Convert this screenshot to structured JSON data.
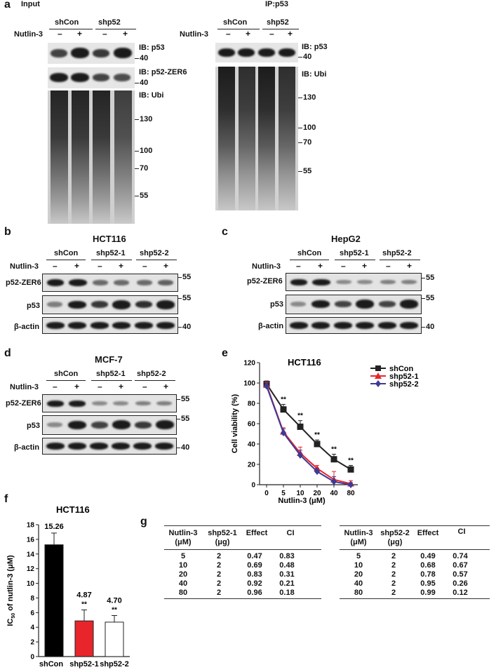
{
  "panel_a": {
    "letter": "a",
    "input_title": "Input",
    "ip_title": "IP:p53",
    "groups": [
      "shCon",
      "shp52"
    ],
    "treatment": "Nutlin-3",
    "signs": [
      "–",
      "+",
      "–",
      "+"
    ],
    "ib_p53": "IB: p53",
    "ib_zer6": "IB: p52-ZER6",
    "ib_ubi": "IB: Ubi",
    "mw_40": "40",
    "mw_130": "130",
    "mw_100": "100",
    "mw_70": "70",
    "mw_55": "55"
  },
  "panel_b": {
    "letter": "b",
    "cell_line": "HCT116",
    "groups": [
      "shCon",
      "shp52-1",
      "shp52-2"
    ],
    "treatment": "Nutlin-3",
    "signs": [
      "–",
      "+",
      "–",
      "+",
      "–",
      "+"
    ],
    "rows": [
      "p52-ZER6",
      "p53",
      "β-actin"
    ],
    "mw": [
      "55",
      "55",
      "40"
    ]
  },
  "panel_c": {
    "letter": "c",
    "cell_line": "HepG2",
    "groups": [
      "shCon",
      "shp52-1",
      "shp52-2"
    ],
    "treatment": "Nutlin-3",
    "signs": [
      "–",
      "+",
      "–",
      "+",
      "–",
      "+"
    ],
    "rows": [
      "p52-ZER6",
      "p53",
      "β-actin"
    ],
    "mw": [
      "55",
      "55",
      "40"
    ]
  },
  "panel_d": {
    "letter": "d",
    "cell_line": "MCF-7",
    "groups": [
      "shCon",
      "shp52-1",
      "shp52-2"
    ],
    "treatment": "Nutlin-3",
    "signs": [
      "–",
      "+",
      "–",
      "+",
      "–",
      "+"
    ],
    "rows": [
      "p52-ZER6",
      "p53",
      "β-actin"
    ],
    "mw": [
      "55",
      "55",
      "40"
    ]
  },
  "panel_e": {
    "letter": "e",
    "significance": "**"
  },
  "panel_f": {
    "letter": "f",
    "significance": "**"
  },
  "panel_g": {
    "letter": "g",
    "table1": {
      "headers": [
        "Nutlin-3\n(μM)",
        "shp52-1\n(μg)",
        "Effect",
        "CI"
      ],
      "rows": [
        [
          "5",
          "2",
          "0.47",
          "0.83"
        ],
        [
          "10",
          "2",
          "0.69",
          "0.48"
        ],
        [
          "20",
          "2",
          "0.83",
          "0.31"
        ],
        [
          "40",
          "2",
          "0.92",
          "0.21"
        ],
        [
          "80",
          "2",
          "0.96",
          "0.18"
        ]
      ]
    },
    "table2": {
      "headers": [
        "Nutlin-3\n(μM)",
        "shp52-2\n(μg)",
        "Effect",
        "CI"
      ],
      "rows": [
        [
          "5",
          "2",
          "0.49",
          "0.74"
        ],
        [
          "10",
          "2",
          "0.68",
          "0.67"
        ],
        [
          "20",
          "2",
          "0.78",
          "0.57"
        ],
        [
          "40",
          "2",
          "0.95",
          "0.26"
        ],
        [
          "80",
          "2",
          "0.99",
          "0.12"
        ]
      ]
    }
  },
  "chart_data": [
    {
      "type": "line",
      "title": "HCT116",
      "xlabel": "Nutlin-3 (μM)",
      "ylabel": "Cell viability (%)",
      "x": [
        "0",
        "5",
        "10",
        "20",
        "40",
        "80"
      ],
      "ylim": [
        0,
        120
      ],
      "yticks": [
        0,
        20,
        40,
        60,
        80,
        100,
        120
      ],
      "legend_position": "top-right",
      "series": [
        {
          "name": "shCon",
          "color": "#222222",
          "marker": "square",
          "values": [
            99,
            74,
            57,
            40,
            25,
            15
          ],
          "errors": [
            3,
            5,
            6,
            4,
            5,
            4
          ]
        },
        {
          "name": "shp52-1",
          "color": "#e8252b",
          "marker": "triangle",
          "values": [
            98,
            52,
            31,
            16,
            5,
            1
          ],
          "errors": [
            3,
            4,
            6,
            3,
            8,
            3
          ]
        },
        {
          "name": "shp52-2",
          "color": "#3b3b98",
          "marker": "diamond",
          "values": [
            97,
            51,
            29,
            13,
            3,
            0
          ],
          "errors": [
            3,
            4,
            5,
            3,
            5,
            2
          ]
        }
      ],
      "annotations": [
        "**",
        "**",
        "**",
        "**",
        "**"
      ]
    },
    {
      "type": "bar",
      "title": "HCT116",
      "ylabel": "IC50 of nutlin-3 (μM)",
      "ylabel_main": "IC",
      "ylabel_sub": "50",
      "ylabel_rest": " of nutlin-3 (μM)",
      "categories": [
        "shCon",
        "shp52-1",
        "shp52-2"
      ],
      "values": [
        15.26,
        4.87,
        4.7
      ],
      "errors": [
        1.6,
        1.5,
        0.9
      ],
      "colors": [
        "#000000",
        "#e8252b",
        "#ffffff"
      ],
      "value_labels": [
        "15.26",
        "4.87",
        "4.70"
      ],
      "ylim": [
        0,
        18
      ],
      "yticks": [
        0,
        2,
        4,
        6,
        8,
        10,
        12,
        14,
        16,
        18
      ]
    }
  ]
}
